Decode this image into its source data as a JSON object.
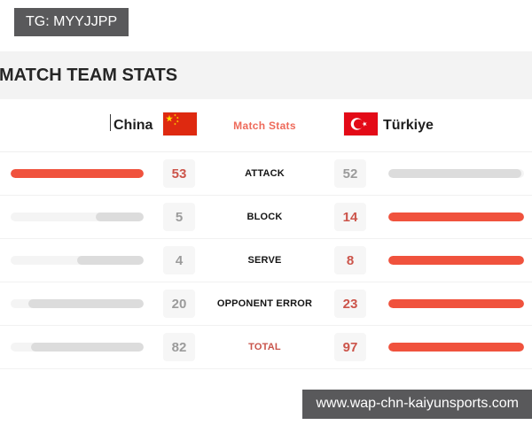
{
  "badges": {
    "top_left": "TG: MYYJJPP",
    "bottom_right": "www.wap-chn-kaiyunsports.com"
  },
  "page": {
    "title": "MATCH TEAM STATS"
  },
  "match_header": {
    "left_team": "China",
    "center_label": "Match Stats",
    "right_team": "Türkiye",
    "left_flag": "china-flag",
    "right_flag": "turkiye-flag"
  },
  "colors": {
    "accent_red_bar": "#f0523d",
    "winner_value_red": "#cc544a",
    "loser_bar_gray": "#dcdcdc",
    "bar_track_gray": "#f4f4f4",
    "value_box_bg": "#f6f6f6",
    "badge_bg": "#59595b",
    "title_strip_bg": "#f3f3f3"
  },
  "stats": {
    "rows": [
      {
        "label": "ATTACK",
        "left": "53",
        "right": "52",
        "highlight_label": false
      },
      {
        "label": "BLOCK",
        "left": "5",
        "right": "14",
        "highlight_label": false
      },
      {
        "label": "SERVE",
        "left": "4",
        "right": "8",
        "highlight_label": false
      },
      {
        "label": "OPPONENT ERROR",
        "left": "20",
        "right": "23",
        "highlight_label": false
      },
      {
        "label": "TOTAL",
        "left": "82",
        "right": "97",
        "highlight_label": true
      }
    ]
  },
  "chart_data": {
    "type": "bar",
    "title": "MATCH TEAM STATS",
    "orientation": "horizontal-mirrored",
    "categories": [
      "ATTACK",
      "BLOCK",
      "SERVE",
      "OPPONENT ERROR",
      "TOTAL"
    ],
    "series": [
      {
        "name": "China",
        "values": [
          53,
          5,
          4,
          20,
          82
        ]
      },
      {
        "name": "Türkiye",
        "values": [
          52,
          14,
          8,
          23,
          97
        ]
      }
    ],
    "legend_position": "top",
    "note": "per row, each bar width = value / max(row values); row winner rendered red, loser gray"
  }
}
